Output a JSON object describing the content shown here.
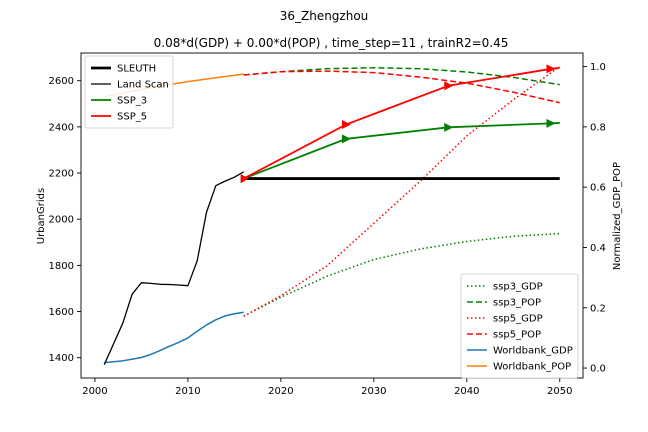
{
  "chart_data": {
    "type": "line",
    "suptitle": "36_Zhengzhou",
    "title": "0.08*d(GDP) + 0.00*d(POP) , time_step=11 , trainR2=0.45",
    "xlabel": "",
    "ylabel_left": "UrbanGrids",
    "ylabel_right": "Normalized_GDP_POP",
    "xlim": [
      1998.5,
      2052.5
    ],
    "ylim_left": [
      1312,
      2720
    ],
    "ylim_right": [
      -0.033,
      1.045
    ],
    "xticks": [
      2000,
      2010,
      2020,
      2030,
      2040,
      2050
    ],
    "yticks_left": [
      1400,
      1600,
      1800,
      2000,
      2200,
      2400,
      2600
    ],
    "yticks_right": [
      0.0,
      0.2,
      0.4,
      0.6,
      0.8,
      1.0
    ],
    "grid": false,
    "left_axis_series": [
      {
        "name": "SLEUTH",
        "color": "#000000",
        "style": "solid",
        "width": 2.8,
        "x": [
          2016,
          2050
        ],
        "y": [
          2176,
          2176
        ]
      },
      {
        "name": "Land Scan",
        "color": "#000000",
        "style": "solid",
        "width": 1.3,
        "x": [
          2001,
          2002,
          2003,
          2004,
          2005,
          2006,
          2007,
          2008,
          2009,
          2010,
          2011,
          2012,
          2013,
          2014,
          2015,
          2016
        ],
        "y": [
          1370,
          1460,
          1550,
          1675,
          1725,
          1722,
          1718,
          1717,
          1715,
          1712,
          1820,
          2030,
          2145,
          2165,
          2182,
          2205
        ]
      },
      {
        "name": "SSP_3",
        "color": "#008000",
        "style": "solid",
        "width": 1.8,
        "markers": ">",
        "x": [
          2016,
          2027,
          2038,
          2049,
          2050
        ],
        "y": [
          2176,
          2348,
          2398,
          2415,
          2417
        ]
      },
      {
        "name": "SSP_5",
        "color": "#ff0000",
        "style": "solid",
        "width": 1.8,
        "markers": ">",
        "x": [
          2016,
          2027,
          2038,
          2049,
          2050
        ],
        "y": [
          2176,
          2410,
          2578,
          2651,
          2656
        ]
      }
    ],
    "right_axis_series": [
      {
        "name": "ssp3_GDP",
        "color": "#008000",
        "style": "dotted",
        "x": [
          2016,
          2020,
          2025,
          2030,
          2035,
          2040,
          2045,
          2050
        ],
        "y": [
          0.172,
          0.235,
          0.305,
          0.36,
          0.395,
          0.42,
          0.437,
          0.446
        ]
      },
      {
        "name": "ssp3_POP",
        "color": "#008000",
        "style": "dashed",
        "x": [
          2016,
          2020,
          2025,
          2030,
          2035,
          2040,
          2045,
          2050
        ],
        "y": [
          0.972,
          0.983,
          0.993,
          0.996,
          0.993,
          0.982,
          0.964,
          0.94
        ]
      },
      {
        "name": "ssp5_GDP",
        "color": "#ff0000",
        "style": "dotted",
        "x": [
          2016,
          2020,
          2025,
          2030,
          2035,
          2040,
          2045,
          2050
        ],
        "y": [
          0.172,
          0.24,
          0.34,
          0.48,
          0.62,
          0.77,
          0.89,
          1.0
        ]
      },
      {
        "name": "ssp5_POP",
        "color": "#ff0000",
        "style": "dashed",
        "x": [
          2016,
          2020,
          2025,
          2030,
          2035,
          2040,
          2045,
          2050
        ],
        "y": [
          0.972,
          0.983,
          0.985,
          0.98,
          0.965,
          0.945,
          0.915,
          0.88
        ]
      },
      {
        "name": "Worldbank_GDP",
        "color": "#1f77b4",
        "style": "solid",
        "x": [
          2001,
          2003,
          2005,
          2006,
          2007,
          2008,
          2009,
          2010,
          2011,
          2012,
          2013,
          2014,
          2015,
          2016
        ],
        "y": [
          0.018,
          0.024,
          0.035,
          0.045,
          0.058,
          0.072,
          0.085,
          0.1,
          0.122,
          0.143,
          0.16,
          0.173,
          0.18,
          0.185
        ]
      },
      {
        "name": "Worldbank_POP",
        "color": "#ff7f0e",
        "style": "solid",
        "x": [
          2001,
          2004,
          2007,
          2010,
          2013,
          2016
        ],
        "y": [
          0.9,
          0.918,
          0.935,
          0.95,
          0.963,
          0.975
        ]
      }
    ],
    "legend_left": {
      "placement": "upper-left",
      "entries": [
        "SLEUTH",
        "Land Scan",
        "SSP_3",
        "SSP_5"
      ]
    },
    "legend_right": {
      "placement": "lower-right",
      "entries": [
        "ssp3_GDP",
        "ssp3_POP",
        "ssp5_GDP",
        "ssp5_POP",
        "Worldbank_GDP",
        "Worldbank_POP"
      ]
    }
  }
}
